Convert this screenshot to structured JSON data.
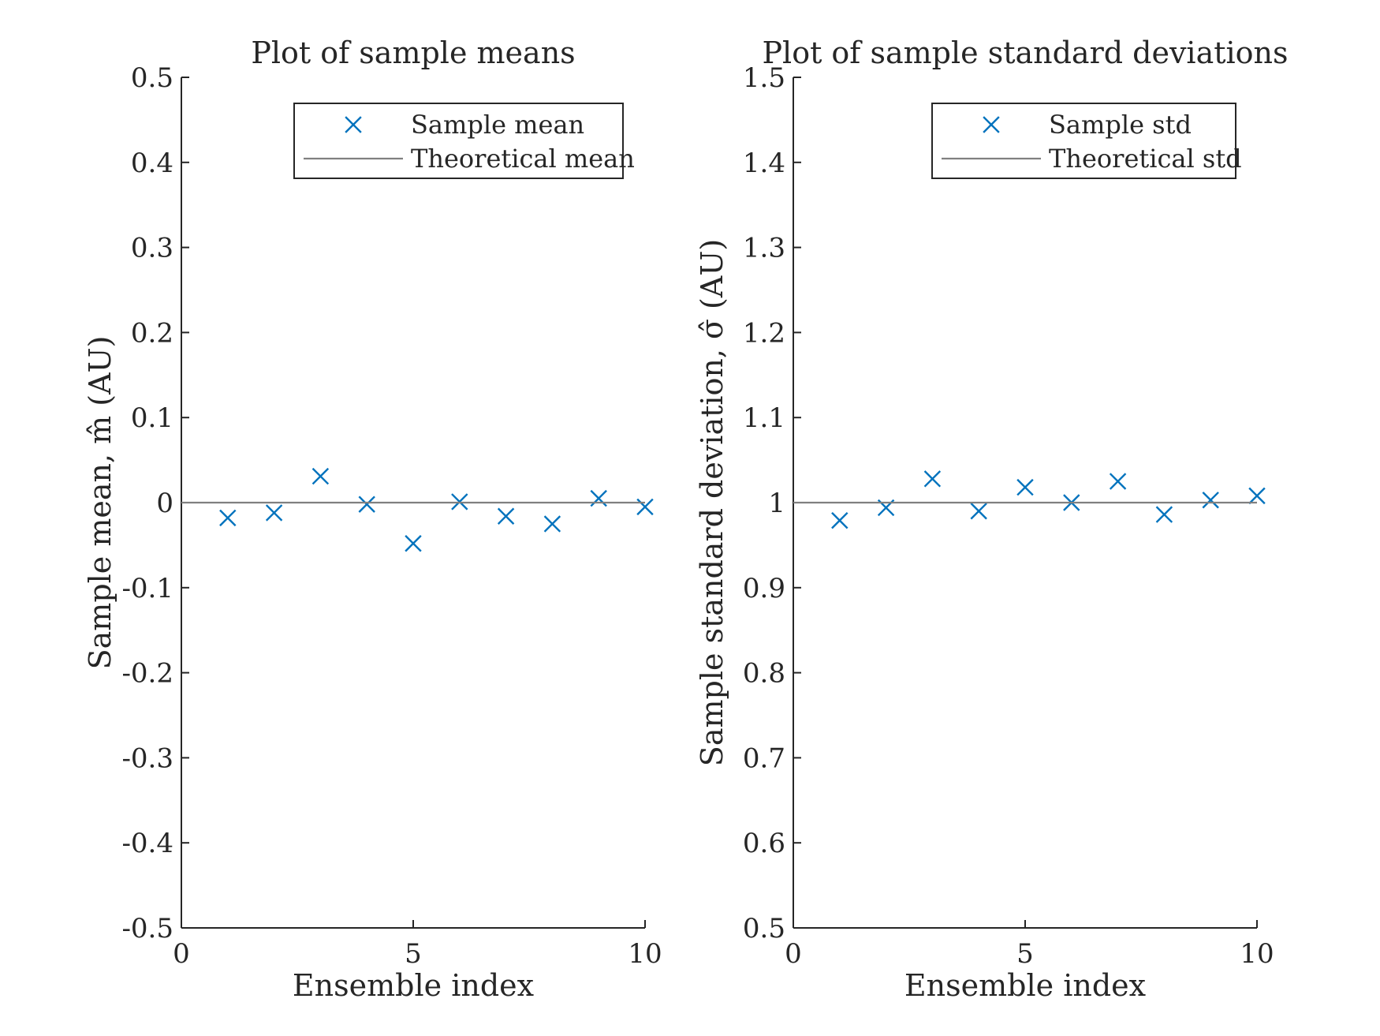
{
  "colors": {
    "marker": "#0072BD",
    "reference_line": "#808080",
    "axes": "#262626"
  },
  "chart_data": [
    {
      "type": "scatter",
      "title": "Plot of sample means",
      "xlabel": "Ensemble index",
      "ylabel": "Sample mean, m̂ (AU)",
      "xlim": [
        0,
        10
      ],
      "ylim": [
        -0.5,
        0.5
      ],
      "xticks": [
        0,
        5,
        10
      ],
      "xtick_labels": [
        "0",
        "5",
        "10"
      ],
      "yticks": [
        -0.5,
        -0.4,
        -0.3,
        -0.2,
        -0.1,
        0,
        0.1,
        0.2,
        0.3,
        0.4,
        0.5
      ],
      "ytick_labels": [
        "-0.5",
        "-0.4",
        "-0.3",
        "-0.2",
        "-0.1",
        "0",
        "0.1",
        "0.2",
        "0.3",
        "0.4",
        "0.5"
      ],
      "grid": false,
      "legend_position": "top-right",
      "series": [
        {
          "name": "Sample mean",
          "kind": "markers",
          "marker": "x",
          "x": [
            1,
            2,
            3,
            4,
            5,
            6,
            7,
            8,
            9,
            10
          ],
          "y": [
            -0.018,
            -0.012,
            0.031,
            -0.002,
            -0.048,
            0.001,
            -0.016,
            -0.025,
            0.005,
            -0.005
          ]
        },
        {
          "name": "Theoretical mean",
          "kind": "line",
          "value": 0
        }
      ]
    },
    {
      "type": "scatter",
      "title": "Plot of sample standard deviations",
      "xlabel": "Ensemble index",
      "ylabel": "Sample standard deviation, σ̂ (AU)",
      "xlim": [
        0,
        10
      ],
      "ylim": [
        0.5,
        1.5
      ],
      "xticks": [
        0,
        5,
        10
      ],
      "xtick_labels": [
        "0",
        "5",
        "10"
      ],
      "yticks": [
        0.5,
        0.6,
        0.7,
        0.8,
        0.9,
        1,
        1.1,
        1.2,
        1.3,
        1.4,
        1.5
      ],
      "ytick_labels": [
        "0.5",
        "0.6",
        "0.7",
        "0.8",
        "0.9",
        "1",
        "1.1",
        "1.2",
        "1.3",
        "1.4",
        "1.5"
      ],
      "grid": false,
      "legend_position": "top-right",
      "series": [
        {
          "name": "Sample std",
          "kind": "markers",
          "marker": "x",
          "x": [
            1,
            2,
            3,
            4,
            5,
            6,
            7,
            8,
            9,
            10
          ],
          "y": [
            0.979,
            0.994,
            1.028,
            0.99,
            1.018,
            1.0,
            1.025,
            0.986,
            1.003,
            1.008
          ]
        },
        {
          "name": "Theoretical std",
          "kind": "line",
          "value": 1
        }
      ]
    }
  ]
}
